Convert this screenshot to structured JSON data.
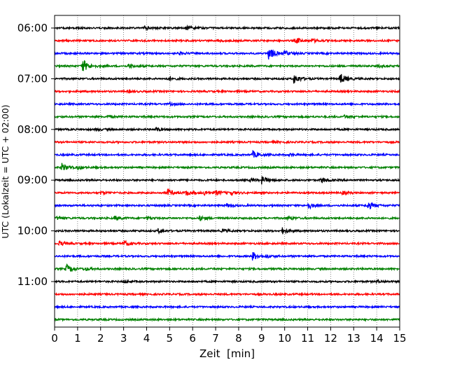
{
  "chart_data": {
    "type": "line",
    "title": "",
    "xlabel": "Zeit  [min]",
    "ylabel": "UTC (Lokalzeit = UTC + 02:00)",
    "xlim": [
      0,
      15
    ],
    "x_ticks": [
      "0",
      "1",
      "2",
      "3",
      "4",
      "5",
      "6",
      "7",
      "8",
      "9",
      "10",
      "11",
      "12",
      "13",
      "14",
      "15"
    ],
    "y_tick_labels": [
      "06:00",
      "07:00",
      "08:00",
      "09:00",
      "10:00",
      "11:00"
    ],
    "grid": "vertical dotted at each minute",
    "trace_colors": [
      "#000000",
      "#ff0000",
      "#0000ff",
      "#008000"
    ],
    "traces": [
      {
        "start": "06:00",
        "color": "#000000",
        "events": [
          [
            5.7,
            3
          ],
          [
            3.9,
            2
          ]
        ]
      },
      {
        "start": "06:15",
        "color": "#ff0000",
        "events": [
          [
            10.5,
            4
          ],
          [
            11.2,
            2
          ],
          [
            7.1,
            1.5
          ]
        ]
      },
      {
        "start": "06:30",
        "color": "#0000ff",
        "events": [
          [
            9.3,
            9
          ],
          [
            10,
            3
          ],
          [
            5.4,
            2
          ]
        ]
      },
      {
        "start": "06:45",
        "color": "#008000",
        "events": [
          [
            1.2,
            10
          ],
          [
            3.2,
            3
          ],
          [
            14.0,
            2
          ]
        ]
      },
      {
        "start": "07:00",
        "color": "#000000",
        "events": [
          [
            10.4,
            7
          ],
          [
            12.4,
            8
          ],
          [
            4.9,
            2.5
          ]
        ]
      },
      {
        "start": "07:15",
        "color": "#ff0000",
        "events": [
          [
            3.2,
            1.5
          ]
        ]
      },
      {
        "start": "07:30",
        "color": "#0000ff",
        "events": [
          [
            5.0,
            1.5
          ]
        ]
      },
      {
        "start": "07:45",
        "color": "#008000",
        "events": [
          [
            2.3,
            1.5
          ],
          [
            12.6,
            2
          ]
        ]
      },
      {
        "start": "08:00",
        "color": "#000000",
        "events": [
          [
            4.4,
            2
          ],
          [
            1.8,
            1.5
          ]
        ]
      },
      {
        "start": "08:15",
        "color": "#ff0000",
        "events": [
          [
            9.5,
            1.2
          ]
        ]
      },
      {
        "start": "08:30",
        "color": "#0000ff",
        "events": [
          [
            8.6,
            5
          ],
          [
            10.2,
            1.5
          ]
        ]
      },
      {
        "start": "08:45",
        "color": "#008000",
        "events": [
          [
            0.3,
            6
          ],
          [
            1.0,
            2
          ]
        ]
      },
      {
        "start": "09:00",
        "color": "#000000",
        "events": [
          [
            9.0,
            5
          ],
          [
            11.6,
            4
          ],
          [
            8.5,
            2
          ]
        ]
      },
      {
        "start": "09:15",
        "color": "#ff0000",
        "events": [
          [
            4.9,
            5
          ],
          [
            2.0,
            2
          ],
          [
            5.7,
            4
          ],
          [
            6.5,
            3
          ],
          [
            7.0,
            3
          ],
          [
            7.6,
            3
          ],
          [
            12.5,
            2
          ]
        ]
      },
      {
        "start": "09:30",
        "color": "#0000ff",
        "events": [
          [
            11.0,
            5
          ],
          [
            13.6,
            6
          ],
          [
            7.5,
            2
          ]
        ]
      },
      {
        "start": "09:45",
        "color": "#008000",
        "events": [
          [
            2.6,
            3
          ],
          [
            6.3,
            3
          ],
          [
            10.1,
            3
          ],
          [
            0.1,
            2
          ],
          [
            4.0,
            2
          ]
        ]
      },
      {
        "start": "10:00",
        "color": "#000000",
        "events": [
          [
            4.5,
            3
          ],
          [
            9.9,
            4
          ],
          [
            7.3,
            2
          ]
        ]
      },
      {
        "start": "10:15",
        "color": "#ff0000",
        "events": [
          [
            3.0,
            4
          ],
          [
            0.2,
            3
          ]
        ]
      },
      {
        "start": "10:30",
        "color": "#0000ff",
        "events": [
          [
            8.6,
            6
          ],
          [
            9.2,
            2
          ]
        ]
      },
      {
        "start": "10:45",
        "color": "#008000",
        "events": [
          [
            0.5,
            6
          ],
          [
            1.3,
            2
          ]
        ]
      },
      {
        "start": "11:00",
        "color": "#000000",
        "events": [
          [
            3.0,
            2
          ],
          [
            14.0,
            2
          ]
        ]
      },
      {
        "start": "11:15",
        "color": "#ff0000",
        "events": []
      },
      {
        "start": "11:30",
        "color": "#0000ff",
        "events": []
      },
      {
        "start": "11:45",
        "color": "#008000",
        "events": []
      }
    ]
  }
}
